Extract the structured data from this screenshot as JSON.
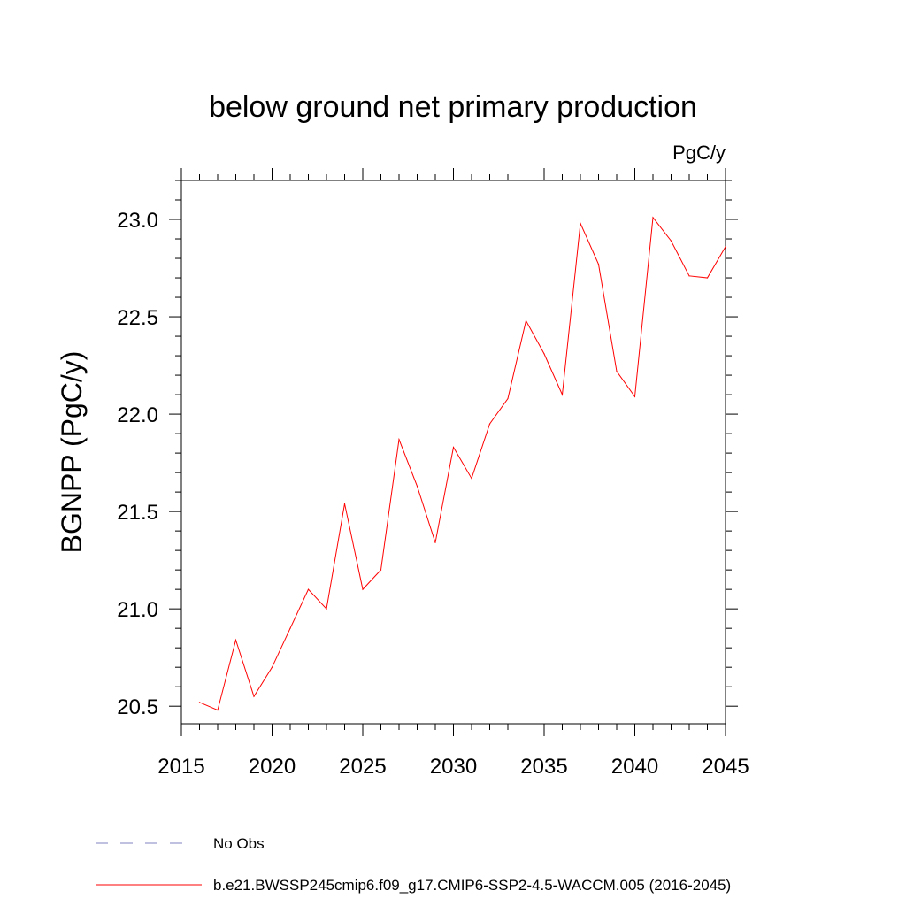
{
  "chart_data": {
    "type": "line",
    "title": "below ground net primary production",
    "units_label": "PgC/y",
    "ylabel": "BGNPP  (PgC/y)",
    "xlabel": "",
    "xlim": [
      2015,
      2045
    ],
    "ylim": [
      20.41,
      23.2
    ],
    "x_ticks": [
      2015,
      2020,
      2025,
      2030,
      2035,
      2040,
      2045
    ],
    "x_tick_labels": [
      "2015",
      "2020",
      "2025",
      "2030",
      "2035",
      "2040",
      "2045"
    ],
    "y_ticks": [
      20.5,
      21.0,
      21.5,
      22.0,
      22.5,
      23.0
    ],
    "y_tick_labels": [
      "20.5",
      "21.0",
      "21.5",
      "22.0",
      "22.5",
      "23.0"
    ],
    "grid": false,
    "legend_position": "bottom-left",
    "series": [
      {
        "name": "b.e21.BWSSP245cmip6.f09_g17.CMIP6-SSP2-4.5-WACCM.005 (2016-2045)",
        "color": "#ff0000",
        "style": "solid",
        "x": [
          2016,
          2017,
          2018,
          2019,
          2020,
          2021,
          2022,
          2023,
          2024,
          2025,
          2026,
          2027,
          2028,
          2029,
          2030,
          2031,
          2032,
          2033,
          2034,
          2035,
          2036,
          2037,
          2038,
          2039,
          2040,
          2041,
          2042,
          2043,
          2044,
          2045
        ],
        "values": [
          20.52,
          20.48,
          20.84,
          20.55,
          20.7,
          20.9,
          21.1,
          21.0,
          21.54,
          21.1,
          21.2,
          21.87,
          21.63,
          21.34,
          21.83,
          21.67,
          21.95,
          22.08,
          22.48,
          22.31,
          22.1,
          22.98,
          22.77,
          22.22,
          22.09,
          23.01,
          22.89,
          22.71,
          22.7,
          22.86
        ]
      }
    ],
    "legend": [
      {
        "label": "No Obs",
        "color": "#8080c0",
        "style": "dashed"
      },
      {
        "label": "b.e21.BWSSP245cmip6.f09_g17.CMIP6-SSP2-4.5-WACCM.005 (2016-2045)",
        "color": "#ff0000",
        "style": "solid"
      }
    ]
  }
}
